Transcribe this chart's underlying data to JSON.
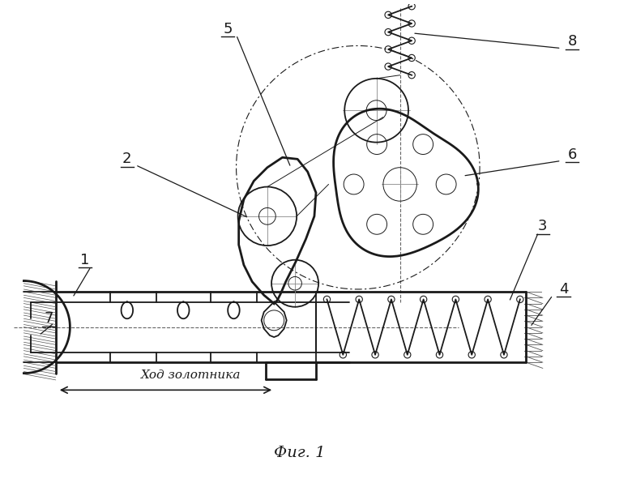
{
  "bg_color": "#ffffff",
  "line_color": "#1a1a1a",
  "title": "Фиг. 1",
  "dim_label": "Ход золотника",
  "lw_thin": 0.7,
  "lw_main": 1.3,
  "lw_thick": 2.0
}
